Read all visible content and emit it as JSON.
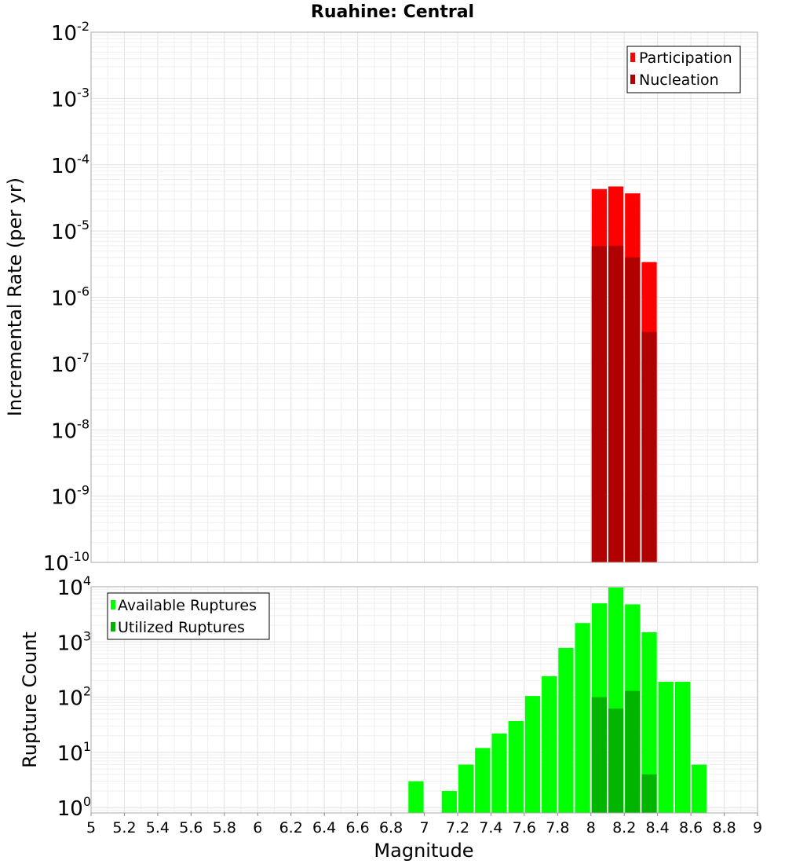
{
  "chart_data": [
    {
      "type": "bar",
      "panel": "top",
      "title": "Ruahine: Central",
      "xlabel": "",
      "ylabel": "Incremental Rate (per yr)",
      "yscale": "log",
      "ylim": [
        1e-10,
        0.01
      ],
      "xlim": [
        5,
        9
      ],
      "ytick_base": "10",
      "ytick_exponents": [
        "-10",
        "-9",
        "-8",
        "-7",
        "-6",
        "-5",
        "-4",
        "-3",
        "-2"
      ],
      "grid": true,
      "legend_position": "top-right",
      "bin_width": 0.1,
      "series": [
        {
          "name": "Participation",
          "color": "#ff0000",
          "x": [
            8.05,
            8.15,
            8.25,
            8.35
          ],
          "values": [
            4.3e-05,
            4.7e-05,
            3.7e-05,
            3.4e-06
          ]
        },
        {
          "name": "Nucleation",
          "color": "#b00000",
          "x": [
            8.05,
            8.15,
            8.25,
            8.35
          ],
          "values": [
            5.9e-06,
            6e-06,
            4e-06,
            3e-07
          ]
        }
      ]
    },
    {
      "type": "bar",
      "panel": "bottom",
      "xlabel": "Magnitude",
      "ylabel": "Rupture Count",
      "yscale": "log",
      "ylim": [
        0.8,
        10000
      ],
      "xlim": [
        5,
        9
      ],
      "xticks": [
        "5",
        "5.2",
        "5.4",
        "5.6",
        "5.8",
        "6",
        "6.2",
        "6.4",
        "6.6",
        "6.8",
        "7",
        "7.2",
        "7.4",
        "7.6",
        "7.8",
        "8",
        "8.2",
        "8.4",
        "8.6",
        "8.8",
        "9"
      ],
      "ytick_base": "10",
      "ytick_exponents": [
        "0",
        "1",
        "2",
        "3",
        "4"
      ],
      "grid": true,
      "legend_position": "top-left",
      "bin_width": 0.1,
      "series": [
        {
          "name": "Available Ruptures",
          "color": "#00ff00",
          "x": [
            6.95,
            7.15,
            7.25,
            7.35,
            7.45,
            7.55,
            7.65,
            7.75,
            7.85,
            7.95,
            8.05,
            8.15,
            8.25,
            8.35,
            8.45,
            8.55,
            8.65
          ],
          "values": [
            3,
            2,
            6,
            12,
            22,
            37,
            105,
            240,
            780,
            2200,
            5000,
            9700,
            4800,
            1500,
            190,
            190,
            6
          ]
        },
        {
          "name": "Utilized Ruptures",
          "color": "#00b400",
          "x": [
            8.05,
            8.15,
            8.25,
            8.35
          ],
          "values": [
            100,
            62,
            130,
            4
          ]
        }
      ]
    }
  ]
}
